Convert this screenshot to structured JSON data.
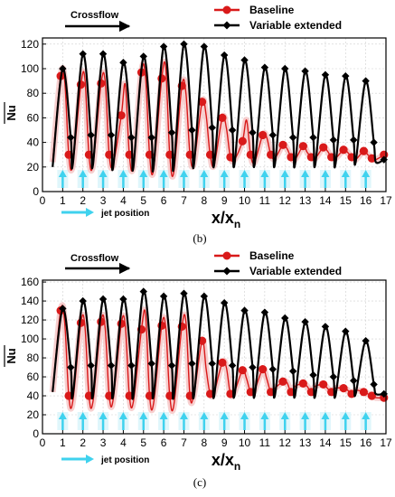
{
  "colors": {
    "baseline": "#d91a1a",
    "baseline_fill": "#f6c7c7",
    "variable": "#000000",
    "jet": "#3fd2ee",
    "jet_fill": "#dff6fb"
  },
  "chart_data": [
    {
      "type": "line",
      "panel": "(b)",
      "xlabel": "x/x_n",
      "xlabel_main": "x/x",
      "xlabel_sub": "n",
      "ylabel": "Nu",
      "xlim": [
        0,
        17
      ],
      "ylim": [
        0,
        125
      ],
      "xticks": [
        "0",
        "1",
        "2",
        "3",
        "4",
        "5",
        "6",
        "7",
        "8",
        "9",
        "10",
        "11",
        "12",
        "13",
        "14",
        "15",
        "16",
        "17"
      ],
      "yticks": [
        "0",
        "20",
        "40",
        "60",
        "80",
        "100",
        "120"
      ],
      "crossflow_label": "Crossflow",
      "jet_label": "jet position",
      "jet_positions": [
        1,
        2,
        3,
        4,
        5,
        6,
        7,
        8,
        9,
        10,
        11,
        12,
        13,
        14,
        15,
        16
      ],
      "legend": [
        "Baseline",
        "Variable extended"
      ],
      "grid": true,
      "series": [
        {
          "name": "Baseline",
          "x": [
            0.5,
            0.9,
            1.1,
            1.3,
            1.5,
            1.9,
            2.1,
            2.3,
            2.5,
            2.9,
            3.1,
            3.3,
            3.5,
            3.9,
            4.1,
            4.3,
            4.5,
            4.9,
            5.1,
            5.3,
            5.5,
            5.9,
            6.1,
            6.3,
            6.5,
            6.9,
            7.1,
            7.3,
            7.5,
            7.9,
            8.1,
            8.3,
            8.5,
            8.9,
            9.1,
            9.3,
            9.5,
            9.9,
            10.1,
            10.3,
            10.5,
            10.9,
            11.1,
            11.3,
            11.5,
            11.9,
            12.1,
            12.3,
            12.5,
            12.9,
            13.1,
            13.3,
            13.5,
            13.9,
            14.1,
            14.3,
            14.5,
            14.9,
            15.1,
            15.3,
            15.5,
            15.9,
            16.1,
            16.3,
            16.5,
            16.9
          ],
          "y": [
            24,
            94,
            90,
            30,
            22,
            87,
            92,
            30,
            22,
            88,
            90,
            30,
            22,
            62,
            87,
            30,
            22,
            97,
            93,
            30,
            18,
            92,
            100,
            30,
            16,
            86,
            80,
            30,
            24,
            73,
            62,
            30,
            22,
            60,
            52,
            28,
            26,
            41,
            58,
            30,
            24,
            46,
            44,
            30,
            27,
            38,
            35,
            28,
            26,
            37,
            32,
            28,
            27,
            36,
            33,
            28,
            27,
            34,
            32,
            28,
            26,
            33,
            30,
            27,
            26,
            30
          ]
        },
        {
          "name": "Variable extended",
          "x": [
            0.5,
            1.0,
            1.4,
            1.5,
            2.0,
            2.4,
            2.5,
            3.0,
            3.4,
            3.5,
            4.0,
            4.4,
            4.5,
            5.0,
            5.4,
            5.5,
            6.0,
            6.4,
            6.5,
            7.0,
            7.4,
            7.5,
            8.0,
            8.4,
            8.5,
            9.0,
            9.4,
            9.5,
            10.0,
            10.4,
            10.5,
            11.0,
            11.4,
            11.5,
            12.0,
            12.4,
            12.5,
            13.0,
            13.4,
            13.5,
            14.0,
            14.4,
            14.5,
            15.0,
            15.4,
            15.5,
            16.0,
            16.4,
            16.5,
            16.9
          ],
          "y": [
            20,
            100,
            44,
            22,
            112,
            46,
            22,
            112,
            46,
            20,
            105,
            44,
            20,
            110,
            44,
            20,
            118,
            48,
            20,
            120,
            50,
            22,
            118,
            52,
            22,
            111,
            50,
            22,
            107,
            48,
            22,
            101,
            46,
            22,
            100,
            44,
            22,
            98,
            44,
            22,
            95,
            42,
            22,
            94,
            42,
            24,
            90,
            40,
            24,
            26
          ]
        }
      ]
    },
    {
      "type": "line",
      "panel": "(c)",
      "xlabel": "x/x_n",
      "xlabel_main": "x/x",
      "xlabel_sub": "n",
      "ylabel": "Nu",
      "xlim": [
        0,
        17
      ],
      "ylim": [
        0,
        162
      ],
      "xticks": [
        "0",
        "1",
        "2",
        "3",
        "4",
        "5",
        "6",
        "7",
        "8",
        "9",
        "10",
        "11",
        "12",
        "13",
        "14",
        "15",
        "16",
        "17"
      ],
      "yticks": [
        "0",
        "20",
        "40",
        "60",
        "80",
        "100",
        "120",
        "140",
        "160"
      ],
      "crossflow_label": "Crossflow",
      "jet_label": "jet position",
      "jet_positions": [
        1,
        2,
        3,
        4,
        5,
        6,
        7,
        8,
        9,
        10,
        11,
        12,
        13,
        14,
        15,
        16
      ],
      "legend": [
        "Baseline",
        "Variable extended"
      ],
      "grid": true,
      "series": [
        {
          "name": "Baseline",
          "x": [
            0.5,
            0.9,
            1.1,
            1.3,
            1.5,
            1.9,
            2.1,
            2.3,
            2.5,
            2.9,
            3.1,
            3.3,
            3.5,
            3.9,
            4.1,
            4.3,
            4.5,
            4.9,
            5.1,
            5.3,
            5.5,
            5.9,
            6.1,
            6.3,
            6.5,
            6.9,
            7.1,
            7.3,
            7.5,
            7.9,
            8.1,
            8.3,
            8.5,
            8.9,
            9.1,
            9.3,
            9.5,
            9.9,
            10.1,
            10.3,
            10.5,
            10.9,
            11.1,
            11.3,
            11.5,
            11.9,
            12.1,
            12.3,
            12.5,
            12.9,
            13.1,
            13.3,
            13.5,
            13.9,
            14.1,
            14.3,
            14.5,
            14.9,
            15.1,
            15.3,
            15.5,
            15.9,
            16.1,
            16.3,
            16.5,
            16.9
          ],
          "y": [
            44,
            130,
            117,
            40,
            34,
            117,
            114,
            40,
            34,
            118,
            112,
            40,
            36,
            116,
            114,
            40,
            34,
            110,
            126,
            40,
            32,
            114,
            112,
            40,
            30,
            113,
            118,
            40,
            42,
            98,
            68,
            42,
            44,
            75,
            70,
            42,
            44,
            67,
            58,
            44,
            46,
            68,
            58,
            44,
            48,
            55,
            54,
            44,
            50,
            53,
            50,
            44,
            50,
            52,
            48,
            44,
            48,
            48,
            46,
            42,
            46,
            44,
            42,
            40,
            38,
            38
          ]
        },
        {
          "name": "Variable extended",
          "x": [
            0.5,
            1.0,
            1.4,
            1.5,
            2.0,
            2.4,
            2.5,
            3.0,
            3.4,
            3.5,
            4.0,
            4.4,
            4.5,
            5.0,
            5.4,
            5.5,
            6.0,
            6.4,
            6.5,
            7.0,
            7.4,
            7.5,
            8.0,
            8.4,
            8.5,
            9.0,
            9.4,
            9.5,
            10.0,
            10.4,
            10.5,
            11.0,
            11.4,
            11.5,
            12.0,
            12.4,
            12.5,
            13.0,
            13.4,
            13.5,
            14.0,
            14.4,
            14.5,
            15.0,
            15.4,
            15.5,
            16.0,
            16.4,
            16.5,
            16.9
          ],
          "y": [
            44,
            132,
            70,
            40,
            140,
            72,
            40,
            142,
            72,
            40,
            142,
            72,
            40,
            150,
            74,
            40,
            145,
            72,
            40,
            148,
            74,
            40,
            145,
            74,
            40,
            138,
            72,
            40,
            130,
            70,
            40,
            128,
            68,
            40,
            122,
            66,
            40,
            118,
            62,
            40,
            113,
            60,
            40,
            108,
            56,
            42,
            98,
            52,
            42,
            42
          ]
        }
      ]
    }
  ]
}
